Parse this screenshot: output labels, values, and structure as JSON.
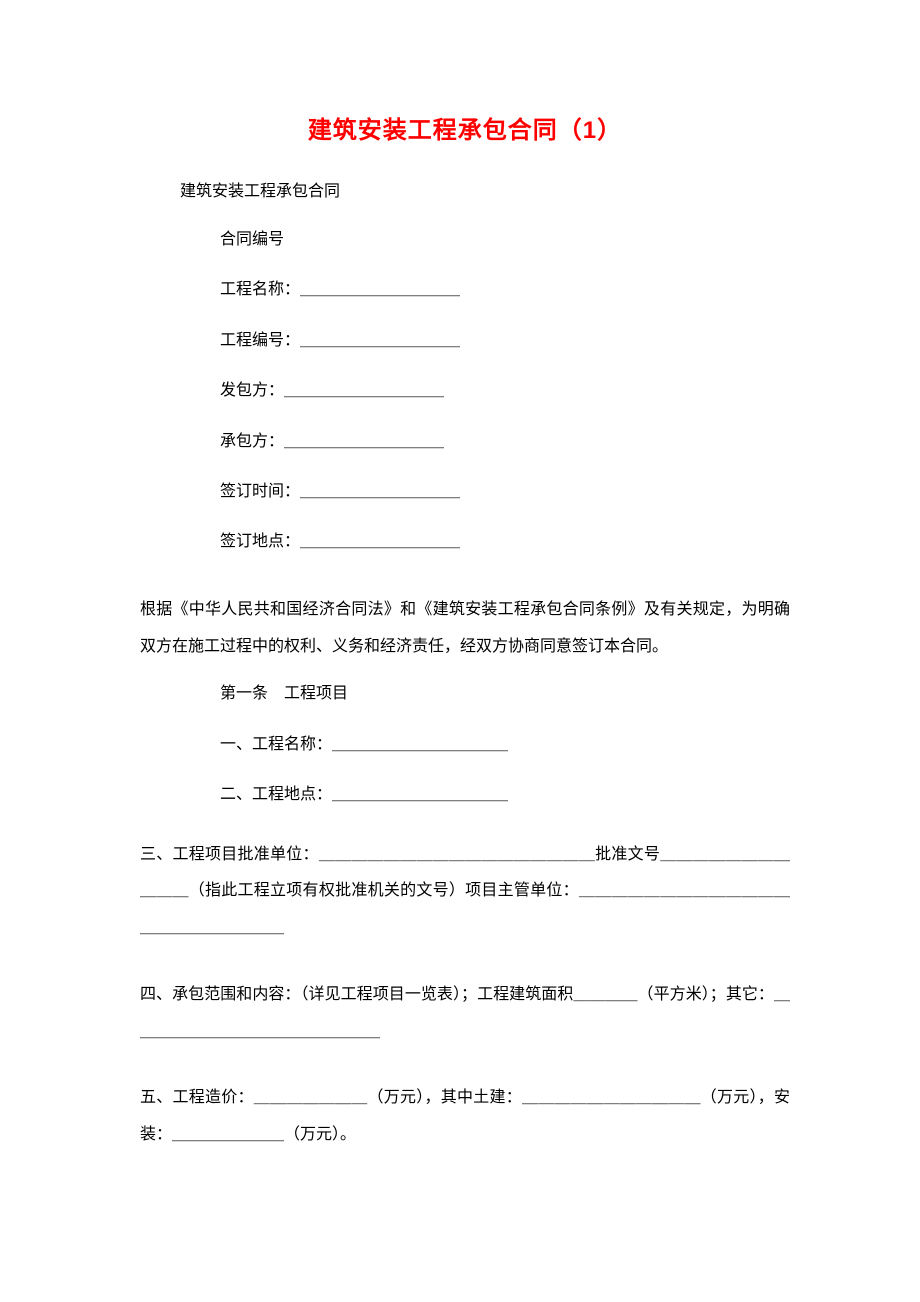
{
  "document": {
    "title": "建筑安装工程承包合同（1）",
    "subtitle": "建筑安装工程承包合同",
    "title_color": "#ff0000",
    "text_color": "#000000",
    "background_color": "#ffffff",
    "font_family_title": "SimHei",
    "font_family_body": "SimSun",
    "title_fontsize": 24,
    "body_fontsize": 16
  },
  "header_fields": {
    "contract_no_label": "合同编号",
    "project_name": "工程名称：＿＿＿＿＿＿＿＿＿＿",
    "project_no": "工程编号：＿＿＿＿＿＿＿＿＿＿",
    "client": "发包方：＿＿＿＿＿＿＿＿＿＿",
    "contractor": "承包方：＿＿＿＿＿＿＿＿＿＿",
    "sign_time": "签订时间：＿＿＿＿＿＿＿＿＿＿",
    "sign_place": "签订地点：＿＿＿＿＿＿＿＿＿＿"
  },
  "preamble": "根据《中华人民共和国经济合同法》和《建筑安装工程承包合同条例》及有关规定，为明确双方在施工过程中的权利、义务和经济责任，经双方协商同意签订本合同。",
  "article1": {
    "heading": "第一条　工程项目",
    "item1": "一、工程名称：＿＿＿＿＿＿＿＿＿＿＿",
    "item2": "二、工程地点：＿＿＿＿＿＿＿＿＿＿＿"
  },
  "clauses": {
    "item3": "三、工程项目批准单位：＿＿＿＿＿＿＿＿＿＿＿＿＿＿＿＿＿批准文号＿＿＿＿＿＿＿＿＿＿＿（指此工程立项有权批准机关的文号）项目主管单位：＿＿＿＿＿＿＿＿＿＿＿＿＿＿＿＿＿＿＿＿＿＿",
    "item4": "四、承包范围和内容：（详见工程项目一览表）；工程建筑面积＿＿＿＿（平方米）；其它：＿＿＿＿＿＿＿＿＿＿＿＿＿＿＿＿",
    "item5": "五、工程造价：＿＿＿＿＿＿＿（万元），其中土建：＿＿＿＿＿＿＿＿＿＿＿（万元），安装：＿＿＿＿＿＿＿（万元）。"
  }
}
